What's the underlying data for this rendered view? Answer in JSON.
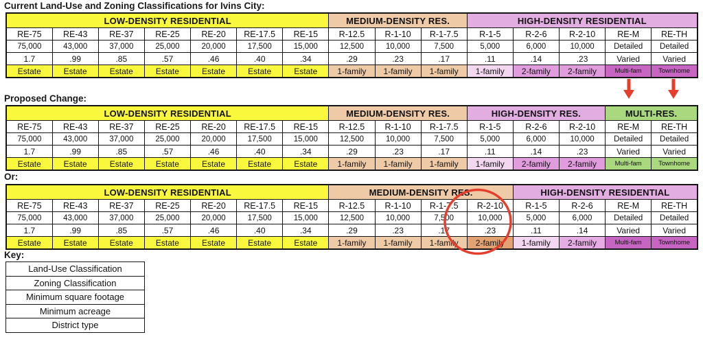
{
  "palette": {
    "yellow": "#f9f83d",
    "tan": "#eecaa6",
    "tan_dark": "#e2a271",
    "purple": "#e2aee2",
    "green": "#a9d87e",
    "lightpink": "#f3d7f1",
    "orchid": "#e09cdd",
    "orchid_light": "#e6ace4",
    "magenta": "#c765c2",
    "annotation_red": "#e53e2c",
    "border": "#141414"
  },
  "titles": {
    "current": "Current Land-Use and Zoning Classifications for Ivins City:",
    "proposed": "Proposed Change:",
    "or": "Or:",
    "key": "Key:"
  },
  "tables": [
    {
      "name": "current",
      "groups": [
        {
          "label": "LOW-DENSITY RESIDENTIAL",
          "span": 7,
          "color": "yellow"
        },
        {
          "label": "MEDIUM-DENSITY RES.",
          "span": 3,
          "color": "tan"
        },
        {
          "label": "HIGH-DENSITY RESIDENTIAL",
          "span": 5,
          "color": "purple"
        }
      ],
      "columns": [
        {
          "zoning": "RE-75",
          "sqft": "75,000",
          "acre": "1.7",
          "district": "Estate",
          "district_color": "yellow"
        },
        {
          "zoning": "RE-43",
          "sqft": "43,000",
          "acre": ".99",
          "district": "Estate",
          "district_color": "yellow"
        },
        {
          "zoning": "RE-37",
          "sqft": "37,000",
          "acre": ".85",
          "district": "Estate",
          "district_color": "yellow"
        },
        {
          "zoning": "RE-25",
          "sqft": "25,000",
          "acre": ".57",
          "district": "Estate",
          "district_color": "yellow"
        },
        {
          "zoning": "RE-20",
          "sqft": "20,000",
          "acre": ".46",
          "district": "Estate",
          "district_color": "yellow"
        },
        {
          "zoning": "RE-17.5",
          "sqft": "17,500",
          "acre": ".40",
          "district": "Estate",
          "district_color": "yellow"
        },
        {
          "zoning": "RE-15",
          "sqft": "15,000",
          "acre": ".34",
          "district": "Estate",
          "district_color": "yellow"
        },
        {
          "zoning": "R-12.5",
          "sqft": "12,500",
          "acre": ".29",
          "district": "1-family",
          "district_color": "tan"
        },
        {
          "zoning": "R-1-10",
          "sqft": "10,000",
          "acre": ".23",
          "district": "1-family",
          "district_color": "tan"
        },
        {
          "zoning": "R-1-7.5",
          "sqft": "7,500",
          "acre": ".17",
          "district": "1-family",
          "district_color": "tan"
        },
        {
          "zoning": "R-1-5",
          "sqft": "5,000",
          "acre": ".11",
          "district": "1-family",
          "district_color": "lightpink"
        },
        {
          "zoning": "R-2-6",
          "sqft": "6,000",
          "acre": ".14",
          "district": "2-family",
          "district_color": "orchid"
        },
        {
          "zoning": "R-2-10",
          "sqft": "10,000",
          "acre": ".23",
          "district": "2-family",
          "district_color": "orchid"
        },
        {
          "zoning": "RE-M",
          "sqft": "Detailed",
          "acre": "Varied",
          "district": "Multi-fam",
          "district_color": "magenta",
          "district_small": true
        },
        {
          "zoning": "RE-TH",
          "sqft": "Detailed",
          "acre": "Varied",
          "district": "Townhome",
          "district_color": "magenta",
          "district_small": true
        }
      ]
    },
    {
      "name": "proposed",
      "groups": [
        {
          "label": "LOW-DENSITY RESIDENTIAL",
          "span": 7,
          "color": "yellow"
        },
        {
          "label": "MEDIUM-DENSITY RES.",
          "span": 3,
          "color": "tan"
        },
        {
          "label": "HIGH-DENSITY RES.",
          "span": 3,
          "color": "purple"
        },
        {
          "label": "MULTI-RES.",
          "span": 2,
          "color": "green"
        }
      ],
      "columns": [
        {
          "zoning": "RE-75",
          "sqft": "75,000",
          "acre": "1.7",
          "district": "Estate",
          "district_color": "yellow"
        },
        {
          "zoning": "RE-43",
          "sqft": "43,000",
          "acre": ".99",
          "district": "Estate",
          "district_color": "yellow"
        },
        {
          "zoning": "RE-37",
          "sqft": "37,000",
          "acre": ".85",
          "district": "Estate",
          "district_color": "yellow"
        },
        {
          "zoning": "RE-25",
          "sqft": "25,000",
          "acre": ".57",
          "district": "Estate",
          "district_color": "yellow"
        },
        {
          "zoning": "RE-20",
          "sqft": "20,000",
          "acre": ".46",
          "district": "Estate",
          "district_color": "yellow"
        },
        {
          "zoning": "RE-17.5",
          "sqft": "17,500",
          "acre": ".40",
          "district": "Estate",
          "district_color": "yellow"
        },
        {
          "zoning": "RE-15",
          "sqft": "15,000",
          "acre": ".34",
          "district": "Estate",
          "district_color": "yellow"
        },
        {
          "zoning": "R-12.5",
          "sqft": "12,500",
          "acre": ".29",
          "district": "1-family",
          "district_color": "tan"
        },
        {
          "zoning": "R-1-10",
          "sqft": "10,000",
          "acre": ".23",
          "district": "1-family",
          "district_color": "tan"
        },
        {
          "zoning": "R-1-7.5",
          "sqft": "7,500",
          "acre": ".17",
          "district": "1-family",
          "district_color": "tan"
        },
        {
          "zoning": "R-1-5",
          "sqft": "5,000",
          "acre": ".11",
          "district": "1-family",
          "district_color": "lightpink"
        },
        {
          "zoning": "R-2-6",
          "sqft": "6,000",
          "acre": ".14",
          "district": "2-family",
          "district_color": "orchid"
        },
        {
          "zoning": "R-2-10",
          "sqft": "10,000",
          "acre": ".23",
          "district": "2-family",
          "district_color": "orchid"
        },
        {
          "zoning": "RE-M",
          "sqft": "Detailed",
          "acre": "Varied",
          "district": "Multi-fam",
          "district_color": "green",
          "district_small": true
        },
        {
          "zoning": "RE-TH",
          "sqft": "Detailed",
          "acre": "Varied",
          "district": "Townhome",
          "district_color": "green",
          "district_small": true
        }
      ]
    },
    {
      "name": "or-alternative",
      "groups": [
        {
          "label": "LOW-DENSITY RESIDENTIAL",
          "span": 7,
          "color": "yellow"
        },
        {
          "label": "MEDIUM-DENSITY RES.",
          "span": 4,
          "color": "tan"
        },
        {
          "label": "HIGH-DENSITY RESIDENTIAL",
          "span": 4,
          "color": "purple"
        }
      ],
      "columns": [
        {
          "zoning": "RE-75",
          "sqft": "75,000",
          "acre": "1.7",
          "district": "Estate",
          "district_color": "yellow"
        },
        {
          "zoning": "RE-43",
          "sqft": "43,000",
          "acre": ".99",
          "district": "Estate",
          "district_color": "yellow"
        },
        {
          "zoning": "RE-37",
          "sqft": "37,000",
          "acre": ".85",
          "district": "Estate",
          "district_color": "yellow"
        },
        {
          "zoning": "RE-25",
          "sqft": "25,000",
          "acre": ".57",
          "district": "Estate",
          "district_color": "yellow"
        },
        {
          "zoning": "RE-20",
          "sqft": "20,000",
          "acre": ".46",
          "district": "Estate",
          "district_color": "yellow"
        },
        {
          "zoning": "RE-17.5",
          "sqft": "17,500",
          "acre": ".40",
          "district": "Estate",
          "district_color": "yellow"
        },
        {
          "zoning": "RE-15",
          "sqft": "15,000",
          "acre": ".34",
          "district": "Estate",
          "district_color": "yellow"
        },
        {
          "zoning": "R-12.5",
          "sqft": "12,500",
          "acre": ".29",
          "district": "1-family",
          "district_color": "tan"
        },
        {
          "zoning": "R-1-10",
          "sqft": "10,000",
          "acre": ".23",
          "district": "1-family",
          "district_color": "tan"
        },
        {
          "zoning": "R-1-7.5",
          "sqft": "7,500",
          "acre": ".17",
          "district": "1-family",
          "district_color": "tan"
        },
        {
          "zoning": "R-2-10",
          "sqft": "10,000",
          "acre": ".23",
          "district": "2-family",
          "district_color": "tan_dark"
        },
        {
          "zoning": "R-1-5",
          "sqft": "5,000",
          "acre": ".11",
          "district": "1-family",
          "district_color": "lightpink"
        },
        {
          "zoning": "R-2-6",
          "sqft": "6,000",
          "acre": ".14",
          "district": "2-family",
          "district_color": "orchid_light"
        },
        {
          "zoning": "RE-M",
          "sqft": "Detailed",
          "acre": "Varied",
          "district": "Multi-fam",
          "district_color": "magenta",
          "district_small": true
        },
        {
          "zoning": "RE-TH",
          "sqft": "Detailed",
          "acre": "Varied",
          "district": "Townhome",
          "district_color": "magenta",
          "district_small": true
        }
      ]
    }
  ],
  "row_semantics": [
    "Zoning Classification",
    "Minimum square footage",
    "Minimum acreage",
    "District type"
  ],
  "key": {
    "rows": [
      "Land-Use Classification",
      "Zoning Classification",
      "Minimum square footage",
      "Minimum acreage",
      "District type"
    ]
  }
}
